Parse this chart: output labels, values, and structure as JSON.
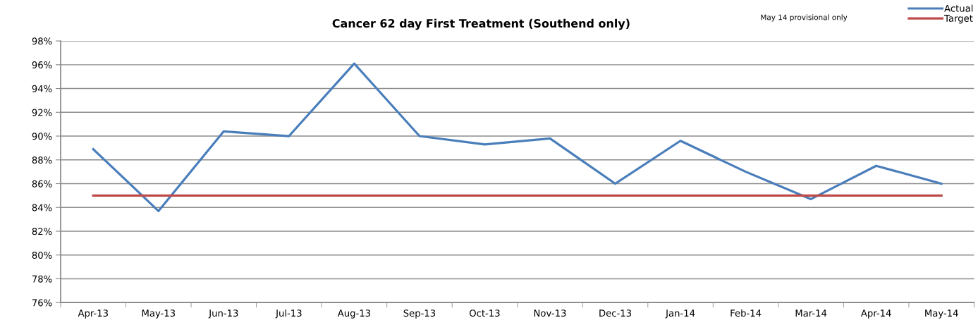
{
  "chart_data": {
    "type": "line",
    "title": "Cancer 62 day First Treatment (Southend only)",
    "categories": [
      "Apr-13",
      "May-13",
      "Jun-13",
      "Jul-13",
      "Aug-13",
      "Sep-13",
      "Oct-13",
      "Nov-13",
      "Dec-13",
      "Jan-14",
      "Feb-14",
      "Mar-14",
      "Apr-14",
      "May-14"
    ],
    "series": [
      {
        "name": "Actual",
        "color": "#4a7ebb",
        "values": [
          88.9,
          83.7,
          90.4,
          90.0,
          96.1,
          90.0,
          89.3,
          89.8,
          86.0,
          89.6,
          87.0,
          84.7,
          87.5,
          86.0
        ]
      },
      {
        "name": "Target",
        "color": "#be4b48",
        "values": [
          85,
          85,
          85,
          85,
          85,
          85,
          85,
          85,
          85,
          85,
          85,
          85,
          85,
          85
        ]
      }
    ],
    "ylim": [
      76,
      98
    ],
    "yticks": [
      {
        "value": 76,
        "label": "76%"
      },
      {
        "value": 78,
        "label": "78%"
      },
      {
        "value": 80,
        "label": "80%"
      },
      {
        "value": 82,
        "label": "82%"
      },
      {
        "value": 84,
        "label": "84%"
      },
      {
        "value": 86,
        "label": "86%"
      },
      {
        "value": 88,
        "label": "88%"
      },
      {
        "value": 90,
        "label": "90%"
      },
      {
        "value": 92,
        "label": "92%"
      },
      {
        "value": 94,
        "label": "94%"
      },
      {
        "value": 96,
        "label": "96%"
      },
      {
        "value": 98,
        "label": "98%"
      }
    ],
    "annotations": [
      "May 14 provisional only"
    ],
    "grid": "y",
    "legend": "top right",
    "marker": "none",
    "line_style": "solid"
  }
}
